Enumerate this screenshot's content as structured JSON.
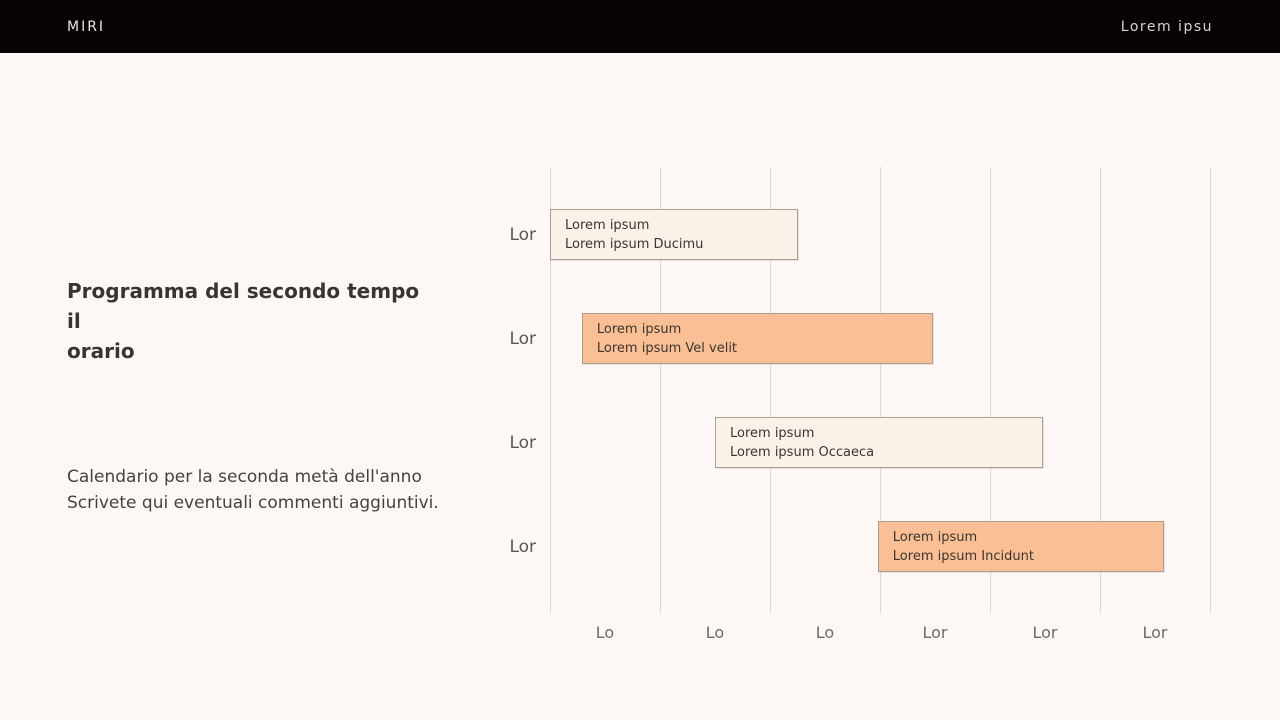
{
  "topbar": {
    "brand": "MIRI",
    "menu": "Lorem ipsu",
    "bg": "#070304"
  },
  "panel": {
    "heading_lines": [
      "Programma del secondo tempo",
      "il",
      "orario"
    ],
    "body_lines": [
      "Calendario per la seconda metà dell'anno",
      "Scrivete qui eventuali commenti aggiuntivi."
    ]
  },
  "chart_data": {
    "type": "gantt",
    "title": "",
    "columns": 6,
    "grid": true,
    "x_tick_labels": [
      "Lo",
      "Lo",
      "Lo",
      "Lor",
      "Lor",
      "Lor"
    ],
    "row_labels": [
      "Lor",
      "Lor",
      "Lor",
      "Lor"
    ],
    "colors": {
      "cream": "#faf1e9",
      "peach": "#fbbf95",
      "bar_border": "#ab9d92",
      "gridline": "#ddd7d1",
      "background": "#fdf8f5"
    },
    "bars": [
      {
        "row": 0,
        "start": 0.0,
        "end": 2.25,
        "fill": "cream",
        "lines": [
          "Lorem ipsum",
          "Lorem ipsum Ducimu"
        ]
      },
      {
        "row": 1,
        "start": 0.29,
        "end": 3.48,
        "fill": "peach",
        "lines": [
          "Lorem ipsum",
          "Lorem ipsum Vel velit"
        ]
      },
      {
        "row": 2,
        "start": 1.5,
        "end": 4.48,
        "fill": "cream",
        "lines": [
          "Lorem ipsum",
          "Lorem ipsum Occaeca"
        ]
      },
      {
        "row": 3,
        "start": 2.98,
        "end": 5.58,
        "fill": "peach",
        "lines": [
          "Lorem ipsum",
          "Lorem ipsum Incidunt"
        ]
      }
    ]
  }
}
